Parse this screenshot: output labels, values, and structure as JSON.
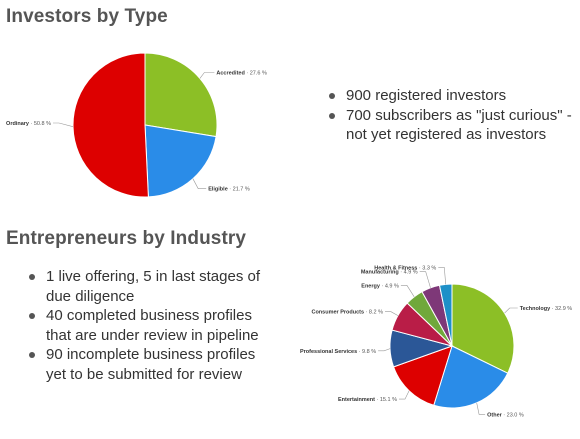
{
  "investors": {
    "title": "Investors by Type",
    "notes": [
      "900 registered investors",
      "700 subscribers as \"just curious\" - not yet registered as investors"
    ]
  },
  "industry": {
    "title": "Entrepreneurs by Industry",
    "notes": [
      "1 live offering, 5 in last stages of due diligence",
      "40 completed business profiles that are under review in pipeline",
      "90 incomplete business profiles yet to be submitted for review"
    ]
  },
  "chart_data": [
    {
      "type": "pie",
      "slices": [
        {
          "label": "Accredited",
          "value": 27.6,
          "value_label": "27.6 %",
          "color": "#8cbf26"
        },
        {
          "label": "Eligible",
          "value": 21.7,
          "value_label": "21.7 %",
          "color": "#2a8ce8"
        },
        {
          "label": "Ordinary",
          "value": 50.8,
          "value_label": "50.8 %",
          "color": "#dd0000"
        }
      ]
    },
    {
      "type": "pie",
      "slices": [
        {
          "label": "Technology",
          "value": 32.9,
          "value_label": "32.9 %",
          "color": "#8cbf26"
        },
        {
          "label": "Other",
          "value": 23.0,
          "value_label": "23.0 %",
          "color": "#2a8ce8"
        },
        {
          "label": "Entertainment",
          "value": 15.1,
          "value_label": "15.1 %",
          "color": "#dd0000"
        },
        {
          "label": "Professional Services",
          "value": 9.8,
          "value_label": "9.8 %",
          "color": "#2b5797"
        },
        {
          "label": "Consumer Products",
          "value": 8.2,
          "value_label": "8.2 %",
          "color": "#b91d47"
        },
        {
          "label": "Energy",
          "value": 4.9,
          "value_label": "4.9 %",
          "color": "#70a83b"
        },
        {
          "label": "Manufacturing",
          "value": 4.9,
          "value_label": "4.9 %",
          "color": "#7e3878"
        },
        {
          "label": "Health & Fitness",
          "value": 3.3,
          "value_label": "3.3 %",
          "color": "#1e90c8"
        }
      ]
    }
  ]
}
